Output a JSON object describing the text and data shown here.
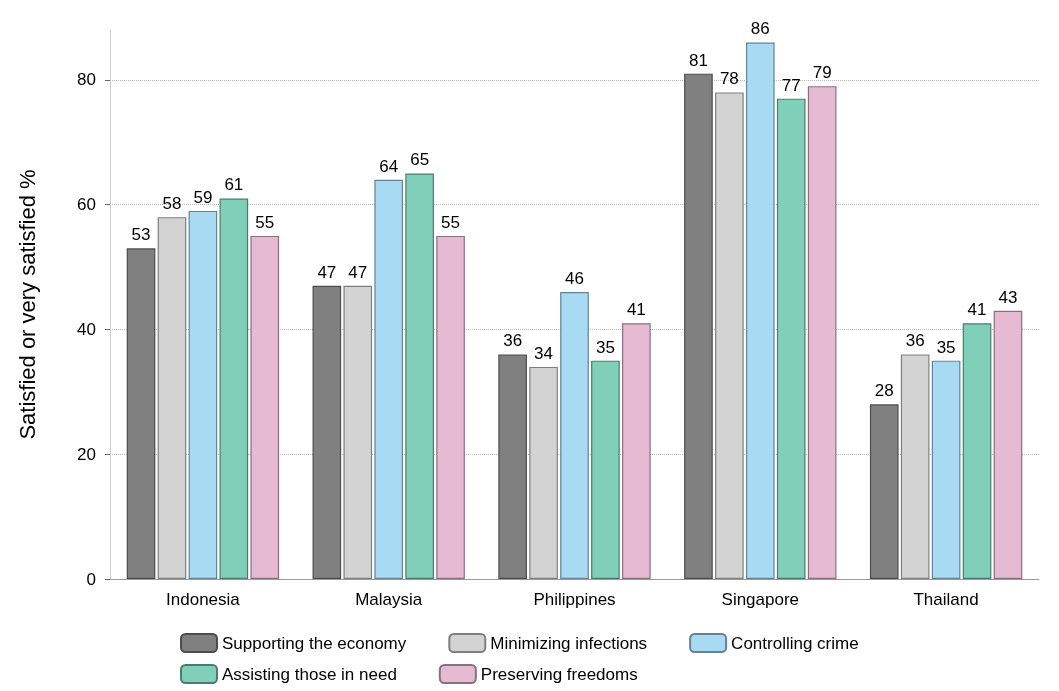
{
  "chart_data": {
    "type": "bar",
    "ylabel": "Satisfied or very satisfied %",
    "categories": [
      "Indonesia",
      "Malaysia",
      "Philippines",
      "Singapore",
      "Thailand"
    ],
    "series": [
      {
        "name": "Supporting the economy",
        "color": "#808080",
        "values": [
          53,
          47,
          36,
          81,
          28
        ]
      },
      {
        "name": "Minimizing infections",
        "color": "#d3d3d3",
        "values": [
          58,
          47,
          34,
          78,
          36
        ]
      },
      {
        "name": "Controlling crime",
        "color": "#a9daf3",
        "values": [
          59,
          64,
          46,
          86,
          35
        ]
      },
      {
        "name": "Assisting those in need",
        "color": "#80cfb9",
        "values": [
          61,
          65,
          35,
          77,
          41
        ]
      },
      {
        "name": "Preserving freedoms",
        "color": "#e6bad3",
        "values": [
          55,
          55,
          41,
          79,
          43
        ]
      }
    ],
    "ylim": [
      0,
      88
    ],
    "yticks": [
      0,
      20,
      40,
      60,
      80
    ],
    "grid": "y",
    "legend": "bottom",
    "data_labels": true
  }
}
